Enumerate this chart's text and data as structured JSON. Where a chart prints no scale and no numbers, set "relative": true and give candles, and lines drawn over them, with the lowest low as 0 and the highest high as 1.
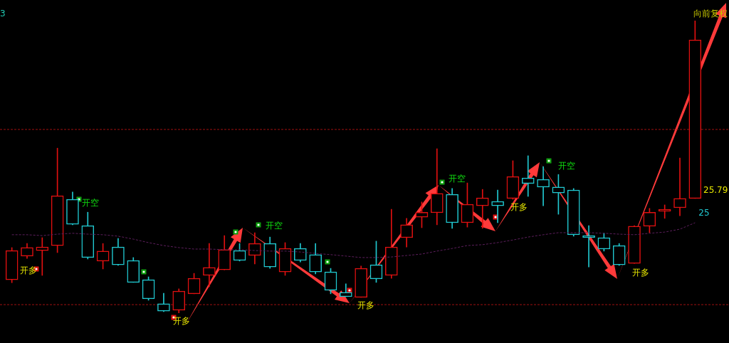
{
  "chart_data": {
    "type": "candlestick",
    "relative": true,
    "grid": false,
    "legend": false,
    "tick_labels": false,
    "marker": "none",
    "categories": [
      null,
      null,
      null,
      null,
      null,
      null,
      null,
      null,
      null,
      null,
      null,
      null,
      null,
      null,
      null,
      null,
      null,
      null,
      null,
      null,
      null,
      null,
      null,
      null,
      null,
      null,
      null,
      null,
      null,
      null,
      null,
      null,
      null,
      null,
      null,
      null,
      null,
      null,
      null,
      null,
      null,
      null,
      null,
      null,
      null,
      null
    ],
    "ohlc": [
      [
        0.114,
        0.224,
        0.104,
        0.214
      ],
      [
        0.195,
        0.238,
        0.187,
        0.224
      ],
      [
        0.214,
        0.258,
        0.129,
        0.226
      ],
      [
        0.231,
        0.564,
        0.207,
        0.401
      ],
      [
        0.389,
        0.414,
        0.302,
        0.304
      ],
      [
        0.299,
        0.345,
        0.185,
        0.19
      ],
      [
        0.178,
        0.238,
        0.151,
        0.212
      ],
      [
        0.226,
        0.255,
        0.163,
        0.165
      ],
      [
        0.18,
        0.19,
        0.105,
        0.105
      ],
      [
        0.114,
        0.124,
        0.044,
        0.049
      ],
      [
        0.032,
        0.068,
        0.005,
        0.007
      ],
      [
        0.01,
        0.083,
        0,
        0.075
      ],
      [
        0.066,
        0.136,
        0.066,
        0.119
      ],
      [
        0.129,
        0.238,
        0.09,
        0.156
      ],
      [
        0.148,
        0.265,
        0.148,
        0.217
      ],
      [
        0.214,
        0.238,
        0.178,
        0.18
      ],
      [
        0.197,
        0.275,
        0.168,
        0.238
      ],
      [
        0.238,
        0.26,
        0.153,
        0.158
      ],
      [
        0.141,
        0.241,
        0.129,
        0.221
      ],
      [
        0.221,
        0.238,
        0.175,
        0.18
      ],
      [
        0.2,
        0.238,
        0.134,
        0.141
      ],
      [
        0.141,
        0.153,
        0.066,
        0.078
      ],
      [
        0.071,
        0.1,
        0.056,
        0.056
      ],
      [
        0.054,
        0.161,
        0.054,
        0.153
      ],
      [
        0.165,
        0.246,
        0.105,
        0.117
      ],
      [
        0.129,
        0.355,
        0.119,
        0.226
      ],
      [
        0.258,
        0.324,
        0.226,
        0.302
      ],
      [
        0.328,
        0.38,
        0.292,
        0.345
      ],
      [
        0.343,
        0.562,
        0.302,
        0.409
      ],
      [
        0.406,
        0.426,
        0.29,
        0.309
      ],
      [
        0.309,
        0.445,
        0.294,
        0.372
      ],
      [
        0.367,
        0.423,
        0.29,
        0.394
      ],
      [
        0.382,
        0.421,
        0.309,
        0.367
      ],
      [
        0.392,
        0.521,
        0.389,
        0.467
      ],
      [
        0.462,
        0.538,
        0.399,
        0.443
      ],
      [
        0.457,
        0.501,
        0.367,
        0.431
      ],
      [
        0.431,
        0.474,
        0.338,
        0.411
      ],
      [
        0.421,
        0.426,
        0.263,
        0.268
      ],
      [
        0.265,
        0.299,
        0.158,
        0.258
      ],
      [
        0.258,
        0.273,
        0.212,
        0.219
      ],
      [
        0.231,
        0.238,
        0.163,
        0.165
      ],
      [
        0.17,
        0.299,
        0.17,
        0.297
      ],
      [
        0.297,
        0.358,
        0.275,
        0.345
      ],
      [
        0.348,
        0.37,
        0.324,
        0.355
      ],
      [
        0.36,
        0.53,
        0.333,
        0.392
      ],
      [
        0.392,
        1,
        0.392,
        0.934
      ]
    ],
    "colors": [
      "#e01010",
      "#e01010",
      "#e01010",
      "#e01010",
      "#20c8d0",
      "#20c8d0",
      "#e01010",
      "#20c8d0",
      "#20c8d0",
      "#20c8d0",
      "#20c8d0",
      "#e01010",
      "#e01010",
      "#e01010",
      "#e01010",
      "#20c8d0",
      "#e01010",
      "#20c8d0",
      "#e01010",
      "#20c8d0",
      "#20c8d0",
      "#20c8d0",
      "#20c8d0",
      "#e01010",
      "#20c8d0",
      "#e01010",
      "#e01010",
      "#e01010",
      "#e01010",
      "#20c8d0",
      "#e01010",
      "#e01010",
      "#20c8d0",
      "#e01010",
      "#20c8d0",
      "#20c8d0",
      "#20c8d0",
      "#20c8d0",
      "#20c8d0",
      "#20c8d0",
      "#20c8d0",
      "#e01010",
      "#e01010",
      "#e01010",
      "#e01010",
      "#e01010"
    ],
    "series": [
      {
        "type": "line",
        "color": "#5c1e5c",
        "line_style": "dashed",
        "values": [
          0.268,
          0.268,
          0.265,
          0.27,
          0.273,
          0.27,
          0.268,
          0.263,
          0.253,
          0.241,
          0.231,
          0.224,
          0.219,
          0.219,
          0.217,
          0.217,
          0.214,
          0.212,
          0.212,
          0.209,
          0.204,
          0.2,
          0.195,
          0.19,
          0.19,
          0.192,
          0.197,
          0.202,
          0.212,
          0.221,
          0.231,
          0.234,
          0.241,
          0.25,
          0.26,
          0.268,
          0.275,
          0.275,
          0.275,
          0.273,
          0.27,
          0.268,
          0.273,
          0.277,
          0.287,
          0.309
        ]
      }
    ],
    "ref_lines": [
      {
        "axis": "y",
        "value": 0.628,
        "color": "#a01010",
        "line_style": "dashed"
      },
      {
        "axis": "y",
        "value": 0.029,
        "color": "#a01010",
        "line_style": "dashed"
      }
    ],
    "annotations": [
      "3",
      "向前复权",
      "开多",
      "开空",
      "开空",
      "开多",
      "开空",
      "开多",
      "开多",
      "开空",
      "开多",
      "25.79",
      "25"
    ]
  }
}
